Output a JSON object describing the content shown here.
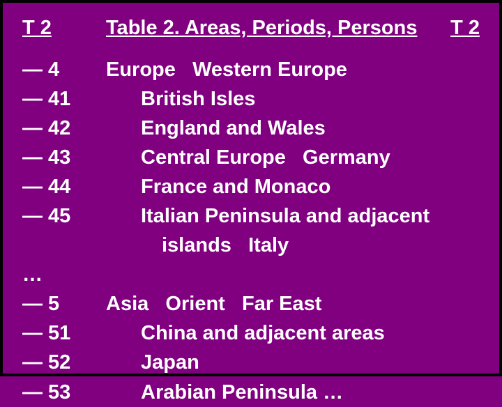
{
  "colors": {
    "background": "#800080",
    "border": "#000000",
    "text": "#ffffff"
  },
  "typography": {
    "font_family": "Arial",
    "font_weight": "bold",
    "font_size_pt": 22
  },
  "header": {
    "left": "T 2",
    "center": "Table 2. Areas, Periods, Persons",
    "right": "T 2"
  },
  "rows": [
    {
      "code": "— 4",
      "desc": "Europe   Western Europe",
      "indent": 0
    },
    {
      "code": "— 41",
      "desc": "British Isles",
      "indent": 1
    },
    {
      "code": "— 42",
      "desc": "England and Wales",
      "indent": 1
    },
    {
      "code": "— 43",
      "desc": "Central Europe   Germany",
      "indent": 1
    },
    {
      "code": "— 44",
      "desc": "France and Monaco",
      "indent": 1
    },
    {
      "code": "— 45",
      "desc": "Italian Peninsula and adjacent",
      "indent": 1
    },
    {
      "code": "",
      "desc": "islands   Italy",
      "indent": 2
    },
    {
      "code": "…",
      "desc": "",
      "indent": 0
    },
    {
      "code": "— 5",
      "desc": "Asia   Orient   Far East",
      "indent": 0
    },
    {
      "code": "— 51",
      "desc": "China and adjacent areas",
      "indent": 1
    },
    {
      "code": "— 52",
      "desc": "Japan",
      "indent": 1
    },
    {
      "code": "— 53",
      "desc": "Arabian Peninsula …",
      "indent": 1
    }
  ]
}
